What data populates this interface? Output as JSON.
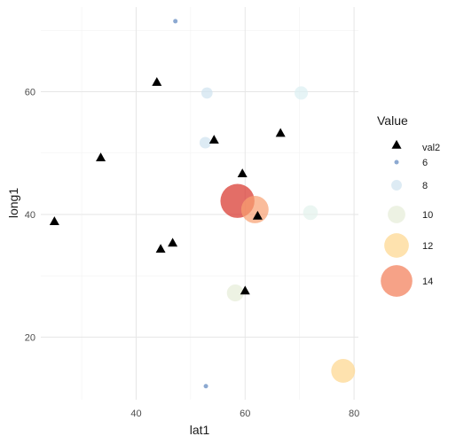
{
  "chart_data": {
    "type": "scatter",
    "xlabel": "lat1",
    "ylabel": "long1",
    "xlim": [
      22.5,
      80.8
    ],
    "ylim": [
      9.8,
      73.8
    ],
    "x_ticks": [
      40,
      60,
      80
    ],
    "x_minor": [
      30,
      50,
      70
    ],
    "y_ticks": [
      20,
      40,
      60
    ],
    "y_minor": [
      30,
      50,
      70
    ],
    "grid": true,
    "legend_position": "right",
    "legend_title": "Value",
    "bubbles": [
      {
        "x": 47.2,
        "y": 71.5,
        "value": 5.6,
        "color": "#5b84be"
      },
      {
        "x": 53.0,
        "y": 59.8,
        "value": 8.2,
        "color": "#cfe3ef"
      },
      {
        "x": 70.3,
        "y": 59.8,
        "value": 8.8,
        "color": "#dcf0f2"
      },
      {
        "x": 52.7,
        "y": 51.7,
        "value": 8.3,
        "color": "#cfe3ef"
      },
      {
        "x": 72.0,
        "y": 40.3,
        "value": 9.2,
        "color": "#e3f2ec"
      },
      {
        "x": 58.6,
        "y": 42.2,
        "value": 14.7,
        "color": "#d73027"
      },
      {
        "x": 61.8,
        "y": 40.8,
        "value": 12.8,
        "color": "#f8a071"
      },
      {
        "x": 58.2,
        "y": 27.2,
        "value": 9.8,
        "color": "#e6ecd7"
      },
      {
        "x": 78.0,
        "y": 14.5,
        "value": 11.8,
        "color": "#fed58c"
      },
      {
        "x": 52.8,
        "y": 12.0,
        "value": 5.5,
        "color": "#5b84be"
      }
    ],
    "triangles": [
      {
        "x": 25.0,
        "y": 38.8
      },
      {
        "x": 33.5,
        "y": 49.2
      },
      {
        "x": 43.8,
        "y": 61.5
      },
      {
        "x": 44.5,
        "y": 34.3
      },
      {
        "x": 46.7,
        "y": 35.3
      },
      {
        "x": 54.3,
        "y": 52.1
      },
      {
        "x": 59.5,
        "y": 46.6
      },
      {
        "x": 62.3,
        "y": 39.7
      },
      {
        "x": 66.5,
        "y": 53.2
      },
      {
        "x": 60.0,
        "y": 27.5
      }
    ],
    "legend": {
      "triangle_label": "val2",
      "sizes": [
        {
          "label": "6",
          "value": 6,
          "color": "#5b84be"
        },
        {
          "label": "8",
          "value": 8,
          "color": "#cfe3ef"
        },
        {
          "label": "10",
          "value": 10,
          "color": "#e6ecd7"
        },
        {
          "label": "12",
          "value": 12,
          "color": "#fed58c"
        },
        {
          "label": "14",
          "value": 14,
          "color": "#f27a54"
        }
      ]
    }
  }
}
